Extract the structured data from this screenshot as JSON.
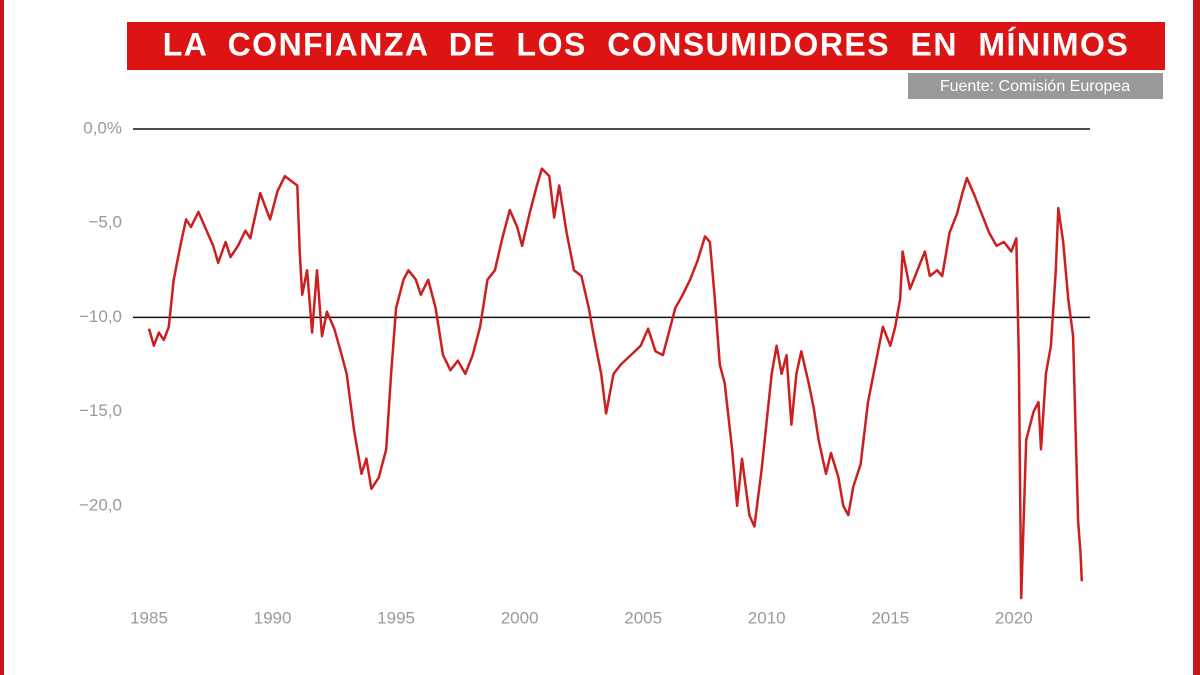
{
  "chart_data": {
    "type": "line",
    "title": "LA CONFIANZA DE LOS CONSUMIDORES EN MÍNIMOS",
    "source": "Fuente: Comisión Europea",
    "color": "#cc1f1f",
    "xlim": [
      1985,
      2022.8
    ],
    "xticks": [
      1985,
      1990,
      1995,
      2000,
      2005,
      2010,
      2015,
      2020
    ],
    "ylim": [
      -25,
      0
    ],
    "yticks": [
      {
        "value": 0,
        "label": "0,0%"
      },
      {
        "value": -5,
        "label": "−5,0"
      },
      {
        "value": -10,
        "label": "−10,0"
      },
      {
        "value": -15,
        "label": "−15,0"
      },
      {
        "value": -20,
        "label": "−20,0"
      }
    ],
    "reference_lines": [
      0,
      -10
    ],
    "x": [
      1985.0,
      1985.2,
      1985.4,
      1985.6,
      1985.8,
      1986.0,
      1986.3,
      1986.5,
      1986.7,
      1987.0,
      1987.3,
      1987.6,
      1987.8,
      1988.1,
      1988.3,
      1988.6,
      1988.9,
      1989.1,
      1989.5,
      1989.9,
      1990.2,
      1990.5,
      1990.8,
      1991.0,
      1991.1,
      1991.2,
      1991.4,
      1991.6,
      1991.8,
      1992.0,
      1992.2,
      1992.5,
      1992.8,
      1993.0,
      1993.3,
      1993.6,
      1993.8,
      1994.0,
      1994.3,
      1994.6,
      1994.8,
      1995.0,
      1995.3,
      1995.5,
      1995.8,
      1996.0,
      1996.3,
      1996.6,
      1996.9,
      1997.2,
      1997.5,
      1997.8,
      1998.1,
      1998.4,
      1998.7,
      1999.0,
      1999.3,
      1999.6,
      1999.9,
      2000.1,
      2000.4,
      2000.7,
      2000.9,
      2001.2,
      2001.4,
      2001.6,
      2001.9,
      2002.2,
      2002.5,
      2002.8,
      2003.0,
      2003.3,
      2003.5,
      2003.8,
      2004.1,
      2004.5,
      2004.9,
      2005.2,
      2005.5,
      2005.8,
      2006.0,
      2006.3,
      2006.6,
      2006.9,
      2007.2,
      2007.5,
      2007.7,
      2007.9,
      2008.1,
      2008.3,
      2008.6,
      2008.8,
      2009.0,
      2009.3,
      2009.5,
      2009.8,
      2010.0,
      2010.2,
      2010.4,
      2010.6,
      2010.8,
      2011.0,
      2011.2,
      2011.4,
      2011.7,
      2011.9,
      2012.1,
      2012.4,
      2012.6,
      2012.9,
      2013.1,
      2013.3,
      2013.5,
      2013.8,
      2014.1,
      2014.4,
      2014.7,
      2015.0,
      2015.2,
      2015.4,
      2015.5,
      2015.8,
      2016.1,
      2016.4,
      2016.6,
      2016.9,
      2017.1,
      2017.4,
      2017.7,
      2017.9,
      2018.1,
      2018.4,
      2018.7,
      2019.0,
      2019.3,
      2019.6,
      2019.9,
      2020.1,
      2020.2,
      2020.3,
      2020.5,
      2020.8,
      2021.0,
      2021.1,
      2021.3,
      2021.5,
      2021.7,
      2021.8,
      2022.0,
      2022.2,
      2022.4,
      2022.5,
      2022.6,
      2022.7,
      2022.75
    ],
    "values": [
      -10.6,
      -11.5,
      -10.8,
      -11.2,
      -10.5,
      -8.0,
      -6.0,
      -4.8,
      -5.2,
      -4.4,
      -5.3,
      -6.2,
      -7.1,
      -6.0,
      -6.8,
      -6.2,
      -5.4,
      -5.8,
      -3.4,
      -4.8,
      -3.3,
      -2.5,
      -2.8,
      -3.0,
      -6.5,
      -8.8,
      -7.5,
      -10.8,
      -7.5,
      -11.0,
      -9.7,
      -10.6,
      -12.0,
      -13.0,
      -16.0,
      -18.3,
      -17.5,
      -19.1,
      -18.5,
      -17.0,
      -13.0,
      -9.5,
      -8.0,
      -7.5,
      -8.0,
      -8.8,
      -8.0,
      -9.5,
      -12.0,
      -12.8,
      -12.3,
      -13.0,
      -12.0,
      -10.5,
      -8.0,
      -7.5,
      -5.8,
      -4.3,
      -5.2,
      -6.2,
      -4.5,
      -3.0,
      -2.1,
      -2.5,
      -4.7,
      -3.0,
      -5.5,
      -7.5,
      -7.8,
      -9.5,
      -11.0,
      -13.0,
      -15.1,
      -13.0,
      -12.5,
      -12.0,
      -11.5,
      -10.6,
      -11.8,
      -12.0,
      -11.0,
      -9.5,
      -8.8,
      -8.0,
      -7.0,
      -5.7,
      -6.0,
      -9.0,
      -12.5,
      -13.5,
      -17.0,
      -20.0,
      -17.5,
      -20.5,
      -21.1,
      -18.0,
      -15.5,
      -13.0,
      -11.5,
      -13.0,
      -12.0,
      -15.7,
      -13.0,
      -11.8,
      -13.5,
      -14.8,
      -16.5,
      -18.3,
      -17.2,
      -18.5,
      -20.0,
      -20.5,
      -19.0,
      -17.8,
      -14.5,
      -12.5,
      -10.5,
      -11.5,
      -10.5,
      -9.0,
      -6.5,
      -8.5,
      -7.5,
      -6.5,
      -7.8,
      -7.5,
      -7.8,
      -5.5,
      -4.5,
      -3.5,
      -2.6,
      -3.5,
      -4.5,
      -5.5,
      -6.2,
      -6.0,
      -6.5,
      -5.8,
      -12.0,
      -24.9,
      -16.5,
      -15.0,
      -14.5,
      -17.0,
      -13.0,
      -11.5,
      -7.5,
      -4.2,
      -6.0,
      -9.0,
      -11.0,
      -16.0,
      -20.8,
      -22.5,
      -24.0
    ]
  }
}
